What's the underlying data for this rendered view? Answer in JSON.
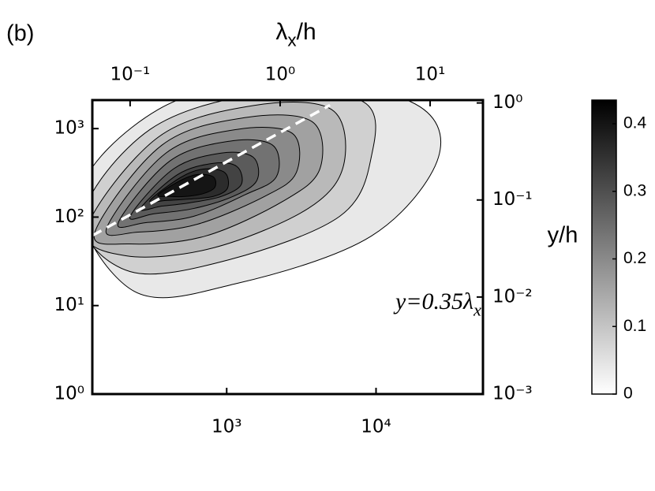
{
  "chart_data": {
    "type": "contour",
    "panel_label": "(b)",
    "x2label": "λx/h",
    "y2label": "y/h",
    "annotation": "y=0.35λx",
    "xscale": "log",
    "yscale": "log",
    "xlim": [
      126,
      52000
    ],
    "xticks": [
      {
        "value": 1000,
        "label": "10³"
      },
      {
        "value": 10000,
        "label": "10⁴"
      }
    ],
    "ylim": [
      1,
      2100
    ],
    "yticks": [
      {
        "value": 1,
        "label": "10⁰"
      },
      {
        "value": 10,
        "label": "10¹"
      },
      {
        "value": 100,
        "label": "10²"
      },
      {
        "value": 1000,
        "label": "10³"
      }
    ],
    "x2lim": [
      0.056,
      22.5
    ],
    "x2ticks": [
      {
        "value": 0.1,
        "label": "10⁻¹"
      },
      {
        "value": 1,
        "label": "10⁰"
      },
      {
        "value": 10,
        "label": "10¹"
      }
    ],
    "y2lim": [
      0.001,
      1.07
    ],
    "y2ticks": [
      {
        "value": 0.001,
        "label": "10⁻³"
      },
      {
        "value": 0.01,
        "label": "10⁻²"
      },
      {
        "value": 0.1,
        "label": "10⁻¹"
      },
      {
        "value": 1,
        "label": "10⁰"
      }
    ],
    "clim": [
      0,
      0.435
    ],
    "cticks": [
      0,
      0.1,
      0.2,
      0.3,
      0.4
    ],
    "colormap": [
      "#ffffff",
      "#000000"
    ],
    "line_color": "#000000",
    "contours": [
      {
        "level": 0.04,
        "x": [
          103,
          347,
          2150,
          17100,
          26200,
          9290,
          1170,
          240
        ],
        "y": [
          171,
          1640,
          3360,
          2010,
          477,
          61,
          17.8,
          14.5
        ]
      },
      {
        "level": 0.08,
        "x": [
          109,
          307,
          1690,
          8220,
          9290,
          5710,
          1040,
          226
        ],
        "y": [
          102,
          979,
          2470,
          2010,
          477,
          102,
          33,
          24.2
        ]
      },
      {
        "level": 0.12,
        "x": [
          116,
          347,
          1500,
          5050,
          6070,
          3510,
          813,
          213
        ],
        "y": [
          75,
          797,
          1820,
          1640,
          388,
          125,
          44.9,
          36.5
        ]
      },
      {
        "level": 0.16,
        "x": [
          131,
          368,
          1320,
          3730,
          4210,
          2430,
          719,
          226
        ],
        "y": [
          67.6,
          650,
          1330,
          1200,
          351,
          154,
          61,
          49.7
        ]
      },
      {
        "level": 0.2,
        "x": [
          157,
          392,
          1170,
          2750,
          2920,
          1790,
          637,
          255
        ],
        "y": [
          75,
          529,
          979,
          884,
          316,
          171,
          83.1,
          67.6
        ]
      },
      {
        "level": 0.24,
        "x": [
          188,
          416,
          1040,
          2030,
          2150,
          1320,
          600,
          288
        ],
        "y": [
          86.6,
          430,
          720,
          650,
          285,
          178,
          102,
          86.6
        ]
      },
      {
        "level": 0.28,
        "x": [
          226,
          441,
          919,
          1500,
          1590,
          1100,
          600,
          326
        ],
        "y": [
          102,
          351,
          529,
          477,
          258,
          171,
          125,
          109
        ]
      },
      {
        "level": 0.32,
        "x": [
          265,
          470,
          813,
          1170,
          1250,
          919,
          564,
          368
        ],
        "y": [
          125,
          303,
          405,
          373,
          232,
          171,
          145,
          133
        ]
      },
      {
        "level": 0.36,
        "x": [
          307,
          499,
          719,
          976,
          1010,
          813,
          564,
          392
        ],
        "y": [
          154,
          285,
          351,
          316,
          210,
          171,
          160,
          154
        ]
      },
      {
        "level": 0.4,
        "x": [
          347,
          488,
          637,
          813,
          834,
          703,
          531,
          416
        ],
        "y": [
          178,
          258,
          303,
          285,
          218,
          185,
          171,
          171
        ]
      }
    ],
    "fit_line": {
      "x": [
        0.056,
        2.15
      ],
      "y": [
        0.043,
        0.95
      ],
      "color": "#ffffff"
    }
  }
}
